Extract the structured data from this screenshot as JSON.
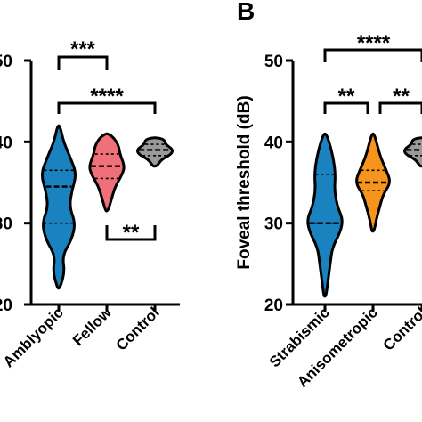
{
  "chart_data": [
    {
      "type": "violin",
      "ylim": [
        20,
        50
      ],
      "yticks": [
        "50",
        "40",
        "30",
        "20"
      ],
      "categories": [
        {
          "label": "Amblyopic",
          "color": "#1a82bf",
          "min": 22,
          "max": 42,
          "q1": 30,
          "median": 34.5,
          "q3": 36.5,
          "density": [
            [
              22,
              0.05
            ],
            [
              24,
              0.25
            ],
            [
              26,
              0.15
            ],
            [
              28,
              0.55
            ],
            [
              30,
              0.7
            ],
            [
              32,
              0.45
            ],
            [
              34,
              0.55
            ],
            [
              36,
              0.75
            ],
            [
              38,
              0.5
            ],
            [
              40,
              0.2
            ],
            [
              42,
              0.05
            ]
          ]
        },
        {
          "label": "Fellow",
          "color": "#f0707a",
          "min": 31.5,
          "max": 41,
          "q1": 35.5,
          "median": 37,
          "q3": 38.5,
          "density": [
            [
              31.5,
              0.05
            ],
            [
              33,
              0.2
            ],
            [
              34.5,
              0.35
            ],
            [
              36,
              0.65
            ],
            [
              37,
              0.75
            ],
            [
              38.5,
              0.55
            ],
            [
              39.5,
              0.5
            ],
            [
              40.5,
              0.3
            ],
            [
              41,
              0.05
            ]
          ]
        },
        {
          "label": "Control",
          "color": "#9a9a9a",
          "min": 37,
          "max": 40.5,
          "q1": 38.3,
          "median": 39,
          "q3": 39.7,
          "density": [
            [
              37,
              0.1
            ],
            [
              37.8,
              0.3
            ],
            [
              38.5,
              0.8
            ],
            [
              39.1,
              0.85
            ],
            [
              39.7,
              0.5
            ],
            [
              40.3,
              0.45
            ],
            [
              40.5,
              0.1
            ]
          ]
        }
      ],
      "significance": [
        {
          "from": "Amblyopic",
          "to": "Fellow",
          "label": "***"
        },
        {
          "from": "Amblyopic",
          "to": "Control",
          "label": "****"
        },
        {
          "from": "Fellow",
          "to": "Control",
          "label": "**"
        }
      ]
    },
    {
      "type": "violin",
      "panel": "B",
      "ylabel": "Foveal threshold (dB)",
      "ylim": [
        20,
        50
      ],
      "yticks": [
        "50",
        "40",
        "30",
        "20"
      ],
      "categories": [
        {
          "label": "Strabismic",
          "color": "#1a82bf",
          "min": 21,
          "max": 41,
          "q1": 30,
          "median": 30,
          "q3": 36,
          "density": [
            [
              21,
              0.05
            ],
            [
              23,
              0.15
            ],
            [
              25,
              0.25
            ],
            [
              27,
              0.35
            ],
            [
              29,
              0.75
            ],
            [
              30.5,
              0.85
            ],
            [
              32,
              0.6
            ],
            [
              34,
              0.45
            ],
            [
              36,
              0.5
            ],
            [
              38,
              0.4
            ],
            [
              40,
              0.2
            ],
            [
              41,
              0.05
            ]
          ]
        },
        {
          "label": "Anisometropic",
          "color": "#f7941d",
          "min": 29,
          "max": 41,
          "q1": 34,
          "median": 35,
          "q3": 36.5,
          "density": [
            [
              29,
              0.05
            ],
            [
              30.5,
              0.15
            ],
            [
              32,
              0.3
            ],
            [
              33.5,
              0.45
            ],
            [
              35,
              0.8
            ],
            [
              36.5,
              0.6
            ],
            [
              38,
              0.35
            ],
            [
              39.5,
              0.2
            ],
            [
              41,
              0.05
            ]
          ]
        },
        {
          "label": "Control",
          "color": "#9a9a9a",
          "min": 37,
          "max": 40.5,
          "q1": 38.3,
          "median": 39,
          "q3": 39.7,
          "density": [
            [
              37,
              0.1
            ],
            [
              37.8,
              0.3
            ],
            [
              38.5,
              0.8
            ],
            [
              39.1,
              0.85
            ],
            [
              39.7,
              0.5
            ],
            [
              40.3,
              0.45
            ],
            [
              40.5,
              0.1
            ]
          ]
        }
      ],
      "significance": [
        {
          "from": "Strabismic",
          "to": "Anisometropic",
          "label": "**"
        },
        {
          "from": "Anisometropic",
          "to": "Control",
          "label": "**"
        },
        {
          "from": "Strabismic",
          "to": "Control",
          "label": "****"
        }
      ]
    }
  ]
}
